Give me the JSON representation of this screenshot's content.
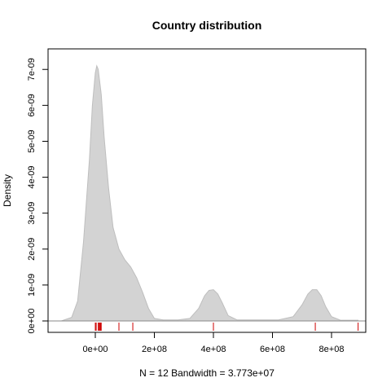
{
  "chart_data": {
    "type": "area",
    "title": "Country distribution",
    "ylabel": "Density",
    "xlabel": "N = 12   Bandwidth = 3.773e+07",
    "xlim": [
      -110000000,
      890000000
    ],
    "ylim": [
      0,
      7.3e-09
    ],
    "xticks": [
      {
        "value": 0,
        "label": "0e+00"
      },
      {
        "value": 200000000,
        "label": "2e+08"
      },
      {
        "value": 400000000,
        "label": "4e+08"
      },
      {
        "value": 600000000,
        "label": "6e+08"
      },
      {
        "value": 800000000,
        "label": "8e+08"
      }
    ],
    "yticks": [
      {
        "value": 0,
        "label": "0e+00"
      },
      {
        "value": 1e-09,
        "label": "1e-09"
      },
      {
        "value": 2e-09,
        "label": "2e-09"
      },
      {
        "value": 3e-09,
        "label": "3e-09"
      },
      {
        "value": 4e-09,
        "label": "4e-09"
      },
      {
        "value": 5e-09,
        "label": "5e-09"
      },
      {
        "value": 6e-09,
        "label": "6e-09"
      },
      {
        "value": 7e-09,
        "label": "7e-09"
      }
    ],
    "density_curve": {
      "x": [
        -115000000,
        -80000000,
        -60000000,
        -40000000,
        -20000000,
        -10000000,
        0,
        5000000,
        10000000,
        20000000,
        30000000,
        45000000,
        60000000,
        80000000,
        100000000,
        120000000,
        140000000,
        160000000,
        180000000,
        200000000,
        230000000,
        280000000,
        320000000,
        350000000,
        370000000,
        385000000,
        400000000,
        415000000,
        430000000,
        450000000,
        480000000,
        550000000,
        620000000,
        670000000,
        700000000,
        720000000,
        735000000,
        750000000,
        765000000,
        780000000,
        800000000,
        830000000,
        870000000,
        890000000
      ],
      "y": [
        0,
        1e-10,
        5.5e-10,
        2.2e-09,
        4.5e-09,
        6e-09,
        6.9e-09,
        7.1e-09,
        7e-09,
        6.3e-09,
        5.1e-09,
        3.7e-09,
        2.6e-09,
        2e-09,
        1.7e-09,
        1.5e-09,
        1.2e-09,
        8e-10,
        3.5e-10,
        7e-11,
        3e-11,
        3e-11,
        7e-11,
        3.5e-10,
        7e-10,
        8.5e-10,
        8.7e-10,
        7.5e-10,
        5e-10,
        1.5e-10,
        3e-11,
        3e-11,
        3e-11,
        1.2e-10,
        4.5e-10,
        7.5e-10,
        8.7e-10,
        8.7e-10,
        7e-10,
        4e-10,
        1.2e-10,
        2e-11,
        2e-11,
        2e-11
      ]
    },
    "rug": [
      0,
      3000000,
      10000000,
      12000000,
      15000000,
      18000000,
      20000000,
      80000000,
      127000000,
      400000000,
      745000000,
      890000000
    ],
    "fill_color": "#d3d3d3",
    "outline_color": "#bebebe",
    "rug_color": "#cd0000",
    "grid": false,
    "legend": "none"
  }
}
